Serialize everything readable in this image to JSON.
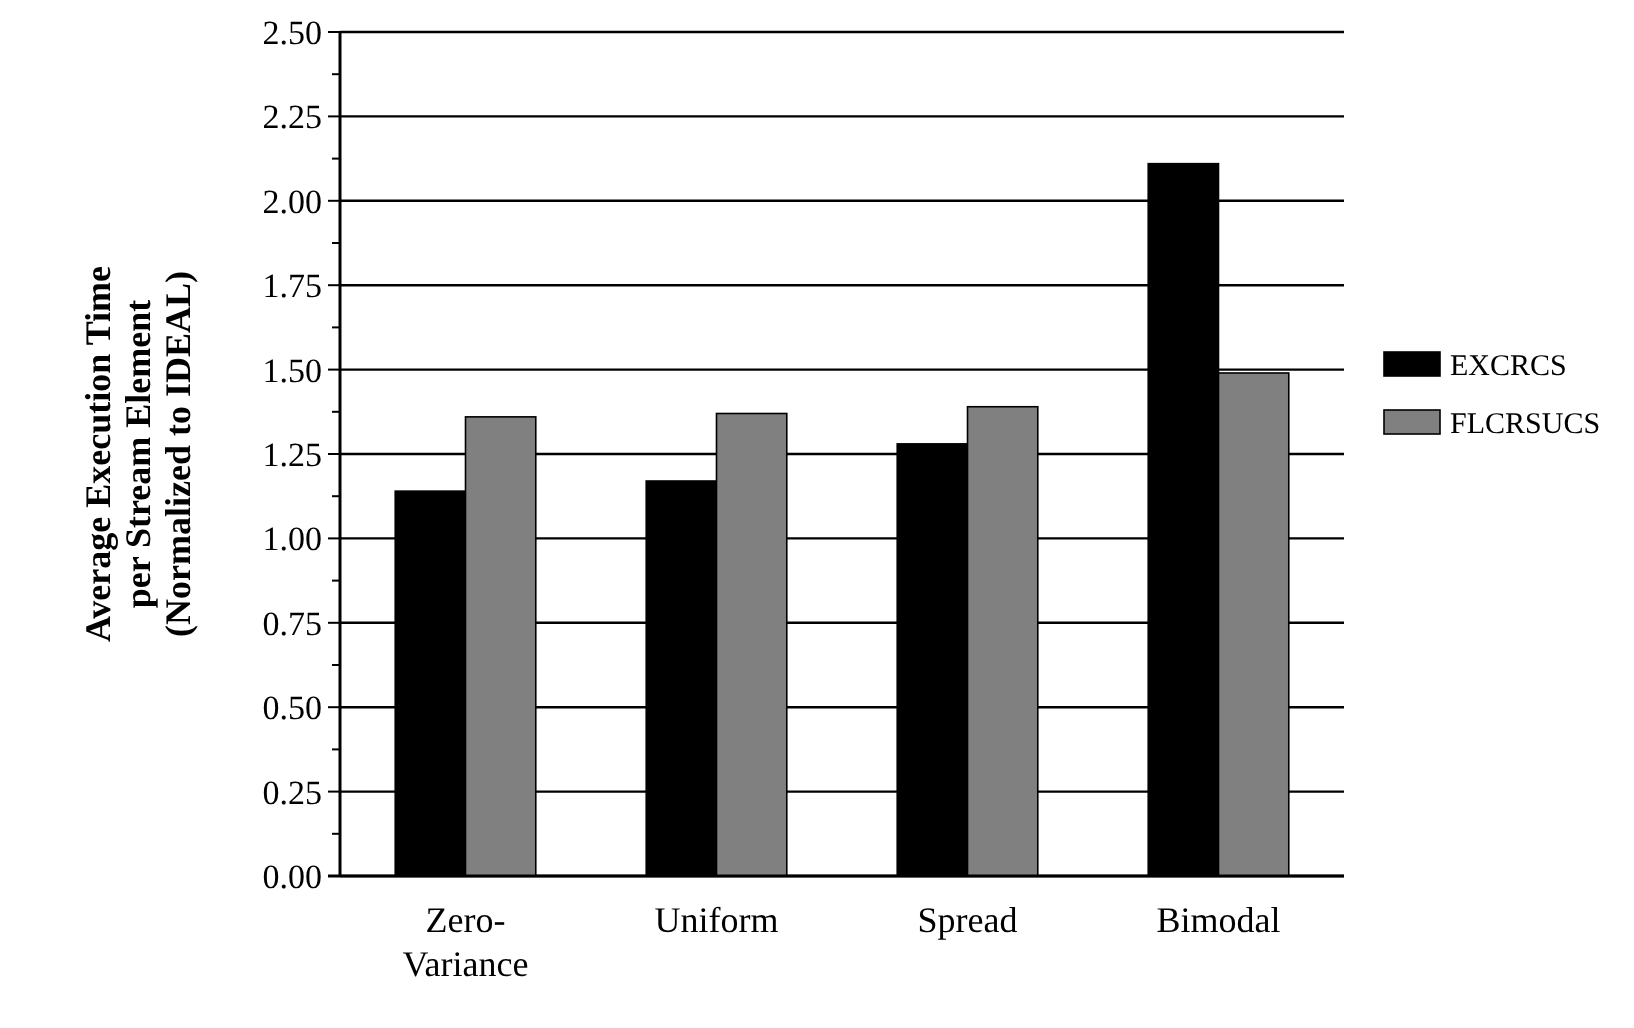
{
  "chart_data": {
    "type": "bar",
    "ylabel": "Average Execution Time\nper Stream Element\n(Normalized to IDEAL)",
    "categories": [
      "Zero-Variance",
      "Uniform",
      "Spread",
      "Bimodal"
    ],
    "series": [
      {
        "name": "EXCRCS",
        "color": "#000000",
        "values": [
          1.14,
          1.17,
          1.28,
          2.11
        ]
      },
      {
        "name": "FLCRSUCS",
        "color": "#808080",
        "values": [
          1.36,
          1.37,
          1.39,
          1.49
        ]
      }
    ],
    "ylim": [
      0,
      2.5
    ],
    "yticks": [
      {
        "value": 0,
        "label": "0.00"
      },
      {
        "value": 0.125,
        "label": null
      },
      {
        "value": 0.25,
        "label": "0.25"
      },
      {
        "value": 0.375,
        "label": null
      },
      {
        "value": 0.5,
        "label": "0.50"
      },
      {
        "value": 0.625,
        "label": null
      },
      {
        "value": 0.75,
        "label": "0.75"
      },
      {
        "value": 0.875,
        "label": null
      },
      {
        "value": 1,
        "label": "1.00"
      },
      {
        "value": 1.125,
        "label": null
      },
      {
        "value": 1.25,
        "label": "1.25"
      },
      {
        "value": 1.375,
        "label": null
      },
      {
        "value": 1.5,
        "label": "1.50"
      },
      {
        "value": 1.625,
        "label": null
      },
      {
        "value": 1.75,
        "label": "1.75"
      },
      {
        "value": 1.875,
        "label": null
      },
      {
        "value": 2,
        "label": "2.00"
      },
      {
        "value": 2.125,
        "label": null
      },
      {
        "value": 2.25,
        "label": "2.25"
      },
      {
        "value": 2.375,
        "label": null
      },
      {
        "value": 2.5,
        "label": "2.50"
      }
    ],
    "grid": "y",
    "legend": "right"
  }
}
